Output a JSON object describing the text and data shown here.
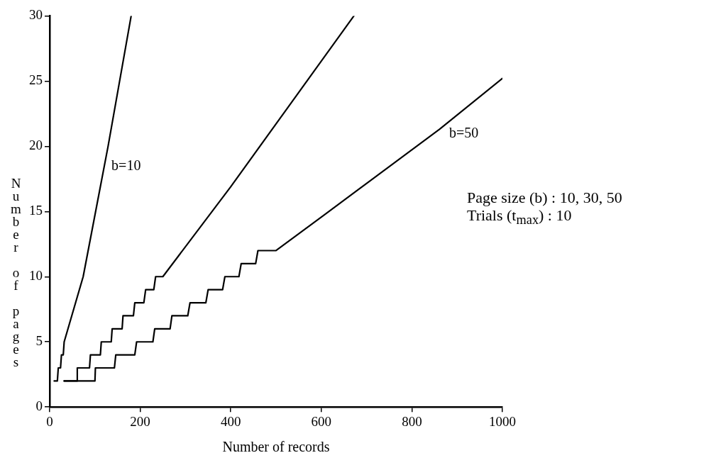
{
  "chart_data": {
    "type": "line",
    "xlabel": "Number of records",
    "ylabel": "Number of pages",
    "xlim": [
      0,
      1000
    ],
    "ylim": [
      0,
      30
    ],
    "xticks": [
      0,
      200,
      400,
      600,
      800,
      1000
    ],
    "yticks": [
      0,
      5,
      10,
      15,
      20,
      25,
      30
    ],
    "grid": false,
    "legend": false,
    "marker": "none",
    "line_style": "solid",
    "series": [
      {
        "color": "#000000",
        "x": [
          10,
          17,
          19,
          24,
          26,
          30,
          32,
          74,
          129,
          180
        ],
        "values": [
          2,
          2,
          3,
          3,
          4,
          4,
          5,
          10,
          20,
          30
        ]
      },
      {
        "color": "#000000",
        "x": [
          32,
          60,
          61,
          88,
          90,
          112,
          114,
          136,
          138,
          160,
          162,
          185,
          188,
          208,
          212,
          230,
          234,
          250,
          400,
          672
        ],
        "values": [
          2,
          2,
          3,
          3,
          4,
          4,
          5,
          5,
          6,
          6,
          7,
          7,
          8,
          8,
          9,
          9,
          10,
          10,
          16.9,
          30
        ]
      },
      {
        "color": "#000000",
        "x": [
          32,
          100,
          101,
          143,
          146,
          188,
          192,
          228,
          232,
          266,
          270,
          305,
          310,
          345,
          350,
          382,
          387,
          418,
          423,
          455,
          460,
          500,
          605,
          861,
          1000
        ],
        "values": [
          2,
          2,
          3,
          3,
          4,
          4,
          5,
          5,
          6,
          6,
          7,
          7,
          8,
          8,
          9,
          9,
          10,
          10,
          11,
          11,
          12,
          12,
          14.7,
          21.3,
          25.2
        ]
      }
    ],
    "annotations": [
      {
        "text": "b=10",
        "x": 124,
        "y": 19
      },
      {
        "text": "b=50",
        "x": 870,
        "y": 21.5
      },
      "Page size (b) : 10, 30, 50",
      "Trials (t$_{max}$) : 10"
    ]
  }
}
